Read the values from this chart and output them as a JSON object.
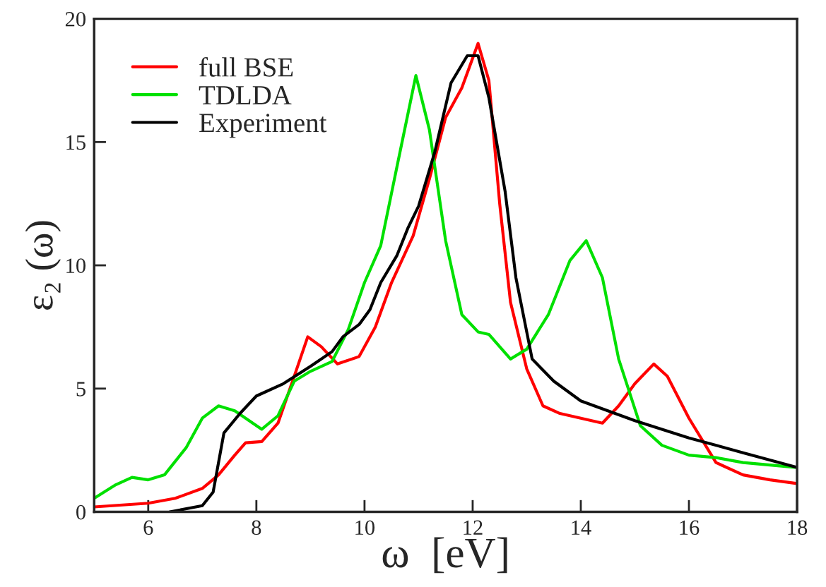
{
  "chart_data": {
    "type": "line",
    "xlabel": "ω  [eV]",
    "ylabel": "ε₂ (ω)",
    "xlim": [
      5,
      18
    ],
    "ylim": [
      0,
      20
    ],
    "xticks": [
      6,
      8,
      10,
      12,
      14,
      16,
      18
    ],
    "yticks": [
      0,
      5,
      10,
      15,
      20
    ],
    "grid": false,
    "legend": "top left",
    "marker": "none",
    "line_style": "solid",
    "series": [
      {
        "name": "full BSE",
        "color": "#ff0000",
        "x": [
          5,
          6,
          6.5,
          7,
          7.3,
          7.6,
          7.8,
          8.1,
          8.4,
          8.7,
          8.95,
          9.2,
          9.5,
          9.9,
          10.2,
          10.5,
          10.9,
          11.2,
          11.5,
          11.8,
          12.1,
          12.3,
          12.5,
          12.7,
          13.0,
          13.3,
          13.6,
          14.0,
          14.4,
          14.7,
          15.0,
          15.35,
          15.6,
          16.0,
          16.5,
          17.0,
          17.5,
          18
        ],
        "values": [
          0.2,
          0.35,
          0.55,
          0.95,
          1.5,
          2.3,
          2.8,
          2.85,
          3.6,
          5.5,
          7.1,
          6.7,
          6.0,
          6.3,
          7.5,
          9.3,
          11.2,
          13.5,
          16.0,
          17.2,
          19.0,
          17.5,
          12.5,
          8.5,
          5.8,
          4.3,
          4.0,
          3.8,
          3.6,
          4.3,
          5.2,
          6.0,
          5.5,
          3.8,
          2.0,
          1.5,
          1.3,
          1.15
        ]
      },
      {
        "name": "TDLDA",
        "color": "#00e000",
        "x": [
          5,
          5.4,
          5.7,
          6.0,
          6.3,
          6.7,
          7.0,
          7.3,
          7.6,
          8.1,
          8.4,
          8.7,
          9.0,
          9.4,
          9.7,
          10.0,
          10.3,
          10.6,
          10.95,
          11.2,
          11.5,
          11.8,
          12.1,
          12.3,
          12.7,
          13.0,
          13.4,
          13.8,
          14.1,
          14.4,
          14.7,
          15.1,
          15.5,
          16.0,
          16.5,
          17.0,
          17.5,
          18
        ],
        "values": [
          0.55,
          1.1,
          1.4,
          1.3,
          1.5,
          2.6,
          3.8,
          4.3,
          4.1,
          3.35,
          3.9,
          5.3,
          5.7,
          6.1,
          7.4,
          9.3,
          10.8,
          14.0,
          17.7,
          15.5,
          11.0,
          8.0,
          7.3,
          7.2,
          6.2,
          6.6,
          8.0,
          10.2,
          11.0,
          9.5,
          6.2,
          3.5,
          2.7,
          2.3,
          2.2,
          2.0,
          1.9,
          1.8
        ]
      },
      {
        "name": "Experiment",
        "color": "#000000",
        "x": [
          6.4,
          7.0,
          7.2,
          7.4,
          7.7,
          8.0,
          8.5,
          9.0,
          9.4,
          9.6,
          9.9,
          10.1,
          10.3,
          10.6,
          10.8,
          11.0,
          11.3,
          11.6,
          11.9,
          12.1,
          12.3,
          12.6,
          12.8,
          13.1,
          13.5,
          14.0,
          15.0,
          16.0,
          17.0,
          18
        ],
        "values": [
          0.0,
          0.25,
          0.8,
          3.2,
          4.0,
          4.7,
          5.2,
          5.9,
          6.5,
          7.1,
          7.6,
          8.2,
          9.3,
          10.4,
          11.5,
          12.4,
          14.6,
          17.4,
          18.5,
          18.5,
          16.8,
          13.0,
          9.5,
          6.2,
          5.3,
          4.5,
          3.7,
          3.0,
          2.4,
          1.8
        ]
      }
    ]
  }
}
